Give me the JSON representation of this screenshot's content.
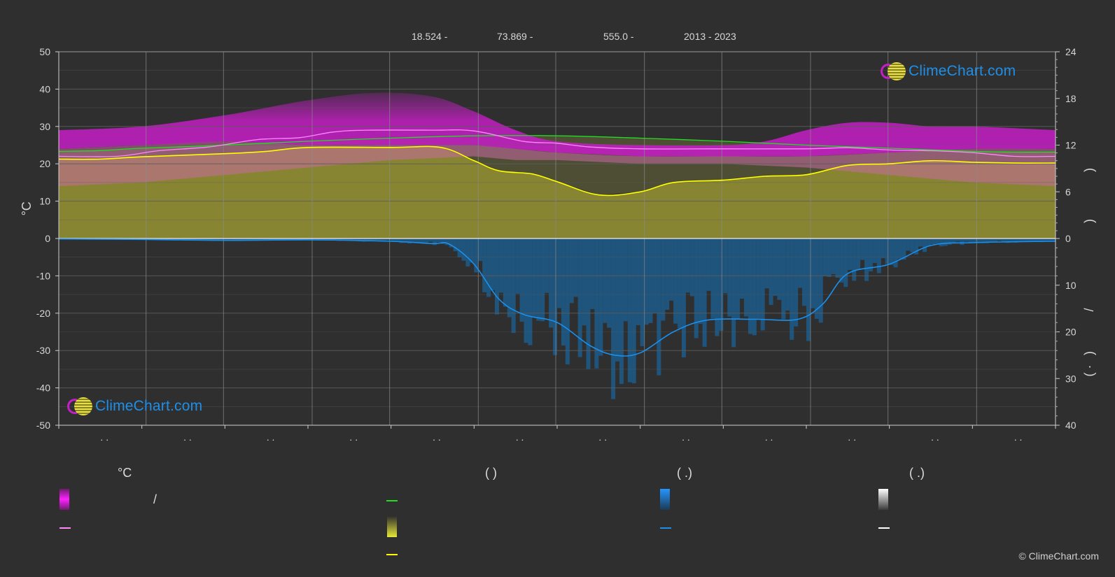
{
  "header": {
    "lat": "18.524 -",
    "lon": "73.869 -",
    "elev": "555.0 -",
    "years": "2013 - 2023"
  },
  "colors": {
    "background": "#2f2f2f",
    "sunshine_line": "#ffff00",
    "daylight_line": "#22dd22",
    "temp_mean_line": "#ff88ff",
    "rain_line": "#1a90ee",
    "max_band": "#c21ec2",
    "sun_band": "#8c8a32",
    "rain_band": "#1c5a8a"
  },
  "chart_data": {
    "type": "line",
    "left_axis": {
      "label": "°C",
      "range": [
        -50,
        50
      ],
      "ticks": [
        50,
        40,
        30,
        20,
        10,
        0,
        -10,
        -20,
        -30,
        -40,
        -50
      ]
    },
    "right_axis_top": {
      "label": "",
      "range": [
        0,
        24
      ],
      "ticks": [
        24,
        18,
        12,
        6,
        0
      ]
    },
    "right_axis_bottom": {
      "label": "",
      "range": [
        0,
        40
      ],
      "ticks": [
        0,
        10,
        20,
        30,
        40
      ]
    },
    "month_labels": [
      ". .",
      ". .",
      ". .",
      ". .",
      ". .",
      ". .",
      ". .",
      ". .",
      ". .",
      ". .",
      ". .",
      ". ."
    ],
    "grid": true,
    "months": 12,
    "series": [
      {
        "key": "daylight",
        "axis": "right_top",
        "points": [
          [
            0.0,
            11.2
          ],
          [
            0.5,
            11.3
          ],
          [
            1.0,
            11.6
          ],
          [
            2.0,
            12.0
          ],
          [
            3.0,
            12.5
          ],
          [
            4.0,
            12.9
          ],
          [
            5.0,
            13.2
          ],
          [
            6.0,
            13.2
          ],
          [
            7.0,
            12.9
          ],
          [
            8.0,
            12.5
          ],
          [
            9.0,
            12.0
          ],
          [
            10.0,
            11.6
          ],
          [
            11.0,
            11.2
          ],
          [
            11.5,
            11.1
          ],
          [
            12.0,
            11.1
          ]
        ]
      },
      {
        "key": "temp_mean",
        "axis": "left",
        "points": [
          [
            0.0,
            22
          ],
          [
            0.7,
            22
          ],
          [
            1.2,
            23.5
          ],
          [
            1.8,
            24.5
          ],
          [
            2.4,
            26.5
          ],
          [
            2.9,
            27
          ],
          [
            3.3,
            28.5
          ],
          [
            3.7,
            29
          ],
          [
            4.5,
            29
          ],
          [
            5.0,
            28.8
          ],
          [
            5.6,
            26
          ],
          [
            6.0,
            25.5
          ],
          [
            6.4,
            24.5
          ],
          [
            7.0,
            24
          ],
          [
            8.0,
            24
          ],
          [
            9.0,
            24
          ],
          [
            9.5,
            24.3
          ],
          [
            10.0,
            23.7
          ],
          [
            10.5,
            23.5
          ],
          [
            11.0,
            23
          ],
          [
            11.5,
            22
          ],
          [
            12.0,
            22
          ]
        ]
      },
      {
        "key": "sunshine",
        "axis": "right_top",
        "points": [
          [
            0.0,
            10.2
          ],
          [
            0.5,
            10.2
          ],
          [
            1.0,
            10.5
          ],
          [
            2.0,
            10.9
          ],
          [
            2.5,
            11.2
          ],
          [
            3.0,
            11.7
          ],
          [
            4.0,
            11.7
          ],
          [
            4.6,
            11.7
          ],
          [
            5.0,
            10.0
          ],
          [
            5.3,
            8.7
          ],
          [
            5.7,
            8.3
          ],
          [
            6.0,
            7.3
          ],
          [
            6.5,
            5.6
          ],
          [
            7.0,
            6.0
          ],
          [
            7.4,
            7.2
          ],
          [
            8.0,
            7.5
          ],
          [
            8.5,
            8.0
          ],
          [
            9.0,
            8.2
          ],
          [
            9.5,
            9.4
          ],
          [
            10.0,
            9.6
          ],
          [
            10.5,
            10.0
          ],
          [
            11.0,
            9.8
          ],
          [
            11.5,
            9.7
          ],
          [
            12.0,
            9.7
          ]
        ]
      },
      {
        "key": "rain",
        "axis": "right_bottom",
        "points": [
          [
            0.0,
            0.1
          ],
          [
            1.0,
            0.2
          ],
          [
            2.0,
            0.4
          ],
          [
            3.0,
            0.3
          ],
          [
            4.0,
            0.6
          ],
          [
            4.5,
            1.1
          ],
          [
            4.7,
            1.2
          ],
          [
            5.0,
            5.5
          ],
          [
            5.3,
            13.0
          ],
          [
            5.6,
            16.3
          ],
          [
            6.0,
            18.0
          ],
          [
            6.4,
            23.0
          ],
          [
            6.7,
            25.0
          ],
          [
            7.0,
            24.5
          ],
          [
            7.4,
            20.0
          ],
          [
            7.8,
            17.5
          ],
          [
            8.4,
            17.3
          ],
          [
            8.9,
            17.3
          ],
          [
            9.2,
            14.0
          ],
          [
            9.5,
            7.5
          ],
          [
            10.0,
            5.5
          ],
          [
            10.5,
            1.5
          ],
          [
            11.0,
            0.9
          ],
          [
            11.5,
            0.7
          ],
          [
            12.0,
            0.6
          ]
        ]
      }
    ],
    "bands": {
      "max_top": [
        [
          0.0,
          29
        ],
        [
          1.0,
          30
        ],
        [
          2.0,
          33
        ],
        [
          3.0,
          37
        ],
        [
          3.8,
          39
        ],
        [
          4.5,
          38
        ],
        [
          5.0,
          34
        ],
        [
          5.5,
          29
        ],
        [
          6.0,
          26
        ],
        [
          7.0,
          25
        ],
        [
          8.0,
          25
        ],
        [
          8.5,
          26
        ],
        [
          9.0,
          29
        ],
        [
          9.5,
          31
        ],
        [
          10.0,
          31
        ],
        [
          10.5,
          30
        ],
        [
          11.0,
          30
        ],
        [
          12.0,
          29
        ]
      ],
      "max_bottom": [
        [
          0.0,
          24
        ],
        [
          1.0,
          25
        ],
        [
          2.0,
          26
        ],
        [
          3.0,
          25
        ],
        [
          4.0,
          25
        ],
        [
          5.0,
          25
        ],
        [
          5.5,
          24
        ],
        [
          6.0,
          23
        ],
        [
          7.0,
          22
        ],
        [
          8.0,
          22
        ],
        [
          9.0,
          22
        ],
        [
          10.0,
          23
        ],
        [
          11.0,
          24
        ],
        [
          12.0,
          24
        ]
      ],
      "pink_bottom": [
        [
          0.0,
          14
        ],
        [
          1.0,
          15
        ],
        [
          2.0,
          17
        ],
        [
          3.0,
          19
        ],
        [
          4.0,
          21
        ],
        [
          5.0,
          22
        ],
        [
          5.5,
          21
        ],
        [
          6.0,
          21
        ],
        [
          7.0,
          20
        ],
        [
          8.0,
          20
        ],
        [
          9.0,
          19
        ],
        [
          10.0,
          17
        ],
        [
          11.0,
          15
        ],
        [
          12.0,
          14
        ]
      ]
    },
    "legend": {
      "col1_head": "°C",
      "col1_row1": "/",
      "col2_head": "(          )",
      "col3_head": "(   .)",
      "col4_head": "(   .)",
      "right_labels": [
        ")",
        ")",
        "/",
        ")",
        "(  ·"
      ]
    }
  },
  "watermark": {
    "text": "ClimeChart.com"
  },
  "copyright": "© ClimeChart.com"
}
